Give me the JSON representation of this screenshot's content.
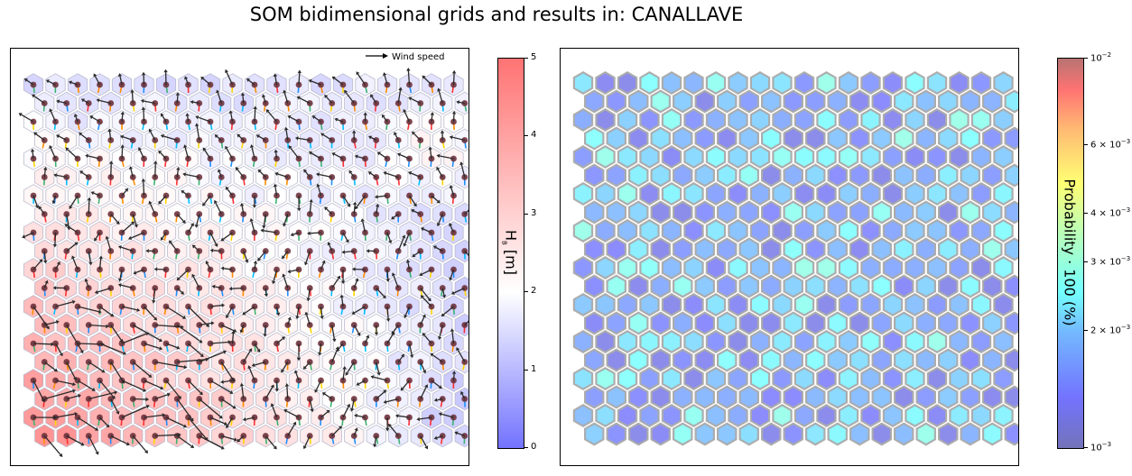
{
  "title": "SOM bidimensional grids and results in: CANALLAVE",
  "colors": {
    "low": "#0000ff",
    "mid": "#ffffff",
    "high": "#ff0000",
    "arrow": "#2a2a2a",
    "hex_edge": "#b8b8b8"
  },
  "chart_data": [
    {
      "type": "heatmap",
      "subtype": "hexagonal SOM grid with wind-speed arrows",
      "grid": {
        "rows": 20,
        "cols": 20
      },
      "legend": {
        "entry": "Wind speed",
        "position": "top-right"
      },
      "colorbar": {
        "label": "H",
        "label_sub": "B",
        "label_unit": "[m]",
        "range": [
          0,
          5
        ],
        "ticks": [
          "0",
          "1",
          "2",
          "3",
          "4",
          "5"
        ],
        "colormap": "bwr"
      },
      "hs_field": {
        "description_of_trend": "higher values toward the lower-left, lower values toward the top and right",
        "corner_values": {
          "top_left": 1.4,
          "top_right": 1.6,
          "bottom_left": 4.8,
          "bottom_right": 1.2
        }
      }
    },
    {
      "type": "heatmap",
      "subtype": "hexagonal SOM grid probability",
      "grid": {
        "rows": 20,
        "cols": 20
      },
      "colorbar": {
        "label": "Probability · 100 (%)",
        "scale": "log",
        "range": [
          0.001,
          0.01
        ],
        "ticks": [
          {
            "value": 0.001,
            "base": "10",
            "exp": "−3",
            "coef": ""
          },
          {
            "value": 0.002,
            "base": "10",
            "exp": "−3",
            "coef": "2 × "
          },
          {
            "value": 0.003,
            "base": "10",
            "exp": "−3",
            "coef": "3 × "
          },
          {
            "value": 0.004,
            "base": "10",
            "exp": "−3",
            "coef": "4 × "
          },
          {
            "value": 0.006,
            "base": "10",
            "exp": "−3",
            "coef": "6 × "
          },
          {
            "value": 0.01,
            "base": "10",
            "exp": "−2",
            "coef": ""
          }
        ],
        "colormap": "jet"
      }
    }
  ]
}
